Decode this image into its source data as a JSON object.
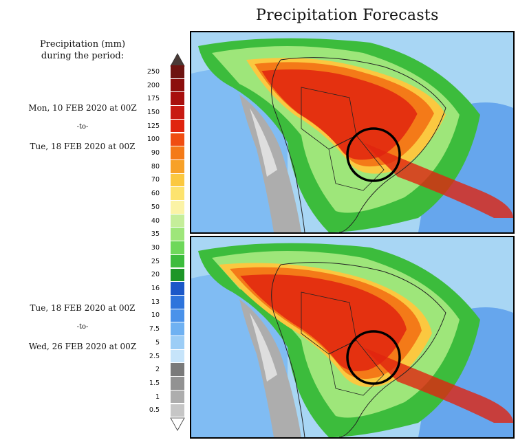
{
  "title": "Precipitation Forecasts",
  "legend": {
    "title_line1": "Precipitation (mm)",
    "title_line2": "during the period:",
    "levels": [
      "250",
      "200",
      "175",
      "150",
      "125",
      "100",
      "90",
      "80",
      "70",
      "60",
      "50",
      "40",
      "35",
      "30",
      "25",
      "20",
      "16",
      "13",
      "10",
      "7.5",
      "5",
      "2.5",
      "2",
      "1.5",
      "1",
      "0.5"
    ],
    "colors": [
      "#6e1410",
      "#8c0f0c",
      "#a8100e",
      "#c81a12",
      "#e0240f",
      "#f04e12",
      "#f47a18",
      "#f7a128",
      "#fbc840",
      "#fde36e",
      "#fbf3a6",
      "#c5ee9a",
      "#9ee67a",
      "#6ed85a",
      "#3cbc3c",
      "#1d9628",
      "#1c58c8",
      "#2e74dc",
      "#4a92ea",
      "#6fb1f2",
      "#9ccdf6",
      "#c6e4fa",
      "#7a7a7a",
      "#929292",
      "#adadad",
      "#c6c6c6"
    ],
    "top_arrow_color": "#4a3a36",
    "bottom_arrow_color": "#ffffff"
  },
  "periods": [
    {
      "start": "Mon, 10 FEB 2020 at 00Z",
      "to": "-to-",
      "end": "Tue, 18 FEB 2020 at 00Z"
    },
    {
      "start": "Tue, 18 FEB 2020 at 00Z",
      "to": "-to-",
      "end": "Wed, 26 FEB 2020 at 00Z"
    }
  ],
  "maps": [
    {
      "name": "forecast-map-week1",
      "highlight": "circle over central-west Brazil"
    },
    {
      "name": "forecast-map-week2",
      "highlight": "circle over central-west Brazil"
    }
  ]
}
